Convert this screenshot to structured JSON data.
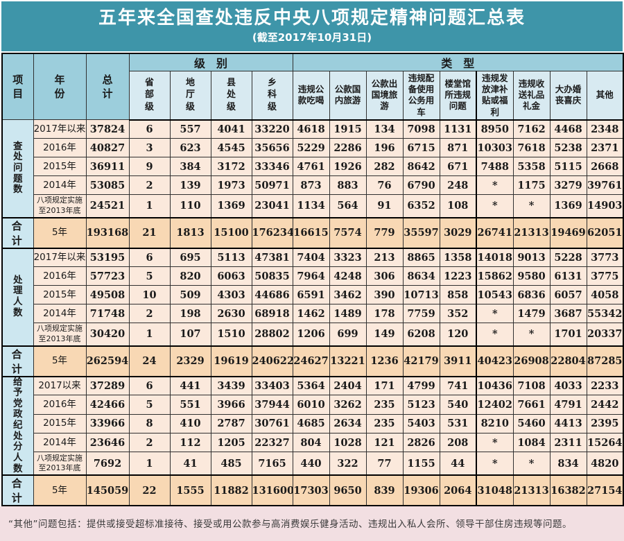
{
  "chart_data": {
    "type": "table",
    "title": "五年来全国查处违反中央八项规定精神问题汇总表",
    "subtitle": "(截至2017年10月31日)",
    "corner_headers": {
      "item": "项目",
      "year": "年份",
      "total": "总计"
    },
    "level_group_label": "级　别",
    "type_group_label": "类　型",
    "level_columns": [
      "省部级",
      "地厅级",
      "县处级",
      "乡科级"
    ],
    "type_columns": [
      "违规公款吃喝",
      "公款国内旅游",
      "公款出国境旅游",
      "违规配备使用公务用车",
      "楼堂馆所违规问题",
      "违规发放津补贴或福利",
      "违规收送礼品礼金",
      "大办婚丧喜庆",
      "其他"
    ],
    "row_groups": [
      {
        "label": "查处问题数",
        "rows": [
          {
            "year": "2017年以来",
            "values": [
              "37824",
              "6",
              "557",
              "4041",
              "33220",
              "4618",
              "1915",
              "134",
              "7098",
              "1131",
              "8950",
              "7162",
              "4468",
              "2348"
            ]
          },
          {
            "year": "2016年",
            "values": [
              "40827",
              "3",
              "623",
              "4545",
              "35656",
              "5229",
              "2286",
              "196",
              "6715",
              "871",
              "10303",
              "7618",
              "5238",
              "2371"
            ]
          },
          {
            "year": "2015年",
            "values": [
              "36911",
              "9",
              "384",
              "3172",
              "33346",
              "4761",
              "1926",
              "282",
              "8642",
              "671",
              "7488",
              "5358",
              "5115",
              "2668"
            ]
          },
          {
            "year": "2014年",
            "values": [
              "53085",
              "2",
              "139",
              "1973",
              "50971",
              "873",
              "883",
              "76",
              "6790",
              "248",
              "*",
              "1175",
              "3279",
              "39761"
            ]
          },
          {
            "year": "八项规定实施至2013年底",
            "values": [
              "24521",
              "1",
              "110",
              "1369",
              "23041",
              "1134",
              "564",
              "91",
              "6352",
              "108",
              "*",
              "*",
              "1369",
              "14903"
            ]
          }
        ],
        "total": {
          "label": "合 计",
          "year": "5年",
          "values": [
            "193168",
            "21",
            "1813",
            "15100",
            "176234",
            "16615",
            "7574",
            "779",
            "35597",
            "3029",
            "26741",
            "21313",
            "19469",
            "62051"
          ]
        }
      },
      {
        "label": "处理人数",
        "rows": [
          {
            "year": "2017年以来",
            "values": [
              "53195",
              "6",
              "695",
              "5113",
              "47381",
              "7404",
              "3323",
              "213",
              "8865",
              "1358",
              "14018",
              "9013",
              "5228",
              "3773"
            ]
          },
          {
            "year": "2016年",
            "values": [
              "57723",
              "5",
              "820",
              "6063",
              "50835",
              "7964",
              "4248",
              "306",
              "8634",
              "1223",
              "15862",
              "9580",
              "6131",
              "3775"
            ]
          },
          {
            "year": "2015年",
            "values": [
              "49508",
              "10",
              "509",
              "4303",
              "44686",
              "6591",
              "3462",
              "390",
              "10713",
              "858",
              "10543",
              "6836",
              "6057",
              "4058"
            ]
          },
          {
            "year": "2014年",
            "values": [
              "71748",
              "2",
              "198",
              "2630",
              "68918",
              "1462",
              "1489",
              "178",
              "7759",
              "352",
              "*",
              "1479",
              "3687",
              "55342"
            ]
          },
          {
            "year": "八项规定实施至2013年底",
            "values": [
              "30420",
              "1",
              "107",
              "1510",
              "28802",
              "1206",
              "699",
              "149",
              "6208",
              "120",
              "*",
              "*",
              "1701",
              "20337"
            ]
          }
        ],
        "total": {
          "label": "合 计",
          "year": "5年",
          "values": [
            "262594",
            "24",
            "2329",
            "19619",
            "240622",
            "24627",
            "13221",
            "1236",
            "42179",
            "3911",
            "40423",
            "26908",
            "22804",
            "87285"
          ]
        }
      },
      {
        "label": "给予党政纪处分人数",
        "rows": [
          {
            "year": "2017以来",
            "values": [
              "37289",
              "6",
              "441",
              "3439",
              "33403",
              "5364",
              "2404",
              "171",
              "4799",
              "741",
              "10436",
              "7108",
              "4033",
              "2233"
            ]
          },
          {
            "year": "2016年",
            "values": [
              "42466",
              "5",
              "551",
              "3966",
              "37944",
              "6010",
              "3262",
              "235",
              "5123",
              "540",
              "12402",
              "7661",
              "4791",
              "2442"
            ]
          },
          {
            "year": "2015年",
            "values": [
              "33966",
              "8",
              "410",
              "2787",
              "30761",
              "4685",
              "2634",
              "235",
              "5403",
              "531",
              "8210",
              "5460",
              "4413",
              "2395"
            ]
          },
          {
            "year": "2014年",
            "values": [
              "23646",
              "2",
              "112",
              "1205",
              "22327",
              "804",
              "1028",
              "121",
              "2826",
              "208",
              "*",
              "1084",
              "2311",
              "15264"
            ]
          },
          {
            "year": "八项规定实施至2013年底",
            "values": [
              "7692",
              "1",
              "41",
              "485",
              "7165",
              "440",
              "322",
              "77",
              "1155",
              "44",
              "*",
              "*",
              "834",
              "4820"
            ]
          }
        ],
        "total": {
          "label": "合 计",
          "year": "5年",
          "values": [
            "145059",
            "22",
            "1555",
            "11882",
            "131600",
            "17303",
            "9650",
            "839",
            "19306",
            "2064",
            "31048",
            "21313",
            "16382",
            "27154"
          ]
        }
      }
    ],
    "footnote": "“其他”问题包括：提供或接受超标准接待、接受或用公款参与高消费娱乐健身活动、违规出入私人会所、领导干部住房违规等问题。",
    "colors": {
      "title_bg": "#3e95a9",
      "header_bg": "#9ccedc",
      "subheader_bg": "#d8eaf1",
      "label_column_bg": "#cde7f0",
      "data_row_bg": "#fbe9dc",
      "total_row_bg": "#f8d8b4",
      "footnote_bg": "#f2dfe2"
    }
  }
}
